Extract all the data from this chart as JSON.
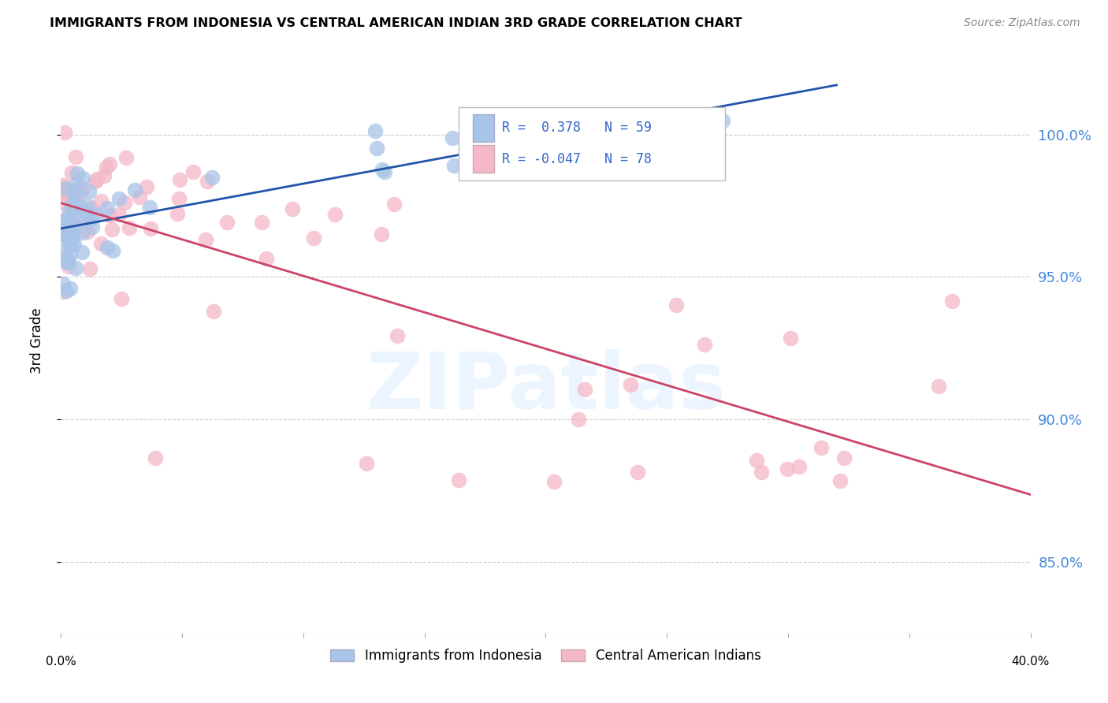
{
  "title": "IMMIGRANTS FROM INDONESIA VS CENTRAL AMERICAN INDIAN 3RD GRADE CORRELATION CHART",
  "source": "Source: ZipAtlas.com",
  "ylabel": "3rd Grade",
  "blue_color": "#a8c4e8",
  "pink_color": "#f4b8c8",
  "blue_line_color": "#2255aa",
  "pink_line_color": "#cc4466",
  "grid_color": "#cccccc",
  "ytick_values": [
    0.85,
    0.9,
    0.95,
    1.0
  ],
  "ytick_labels": [
    "85.0%",
    "90.0%",
    "95.0%",
    "100.0%"
  ],
  "xlim": [
    0.0,
    0.4
  ],
  "ylim": [
    0.825,
    1.03
  ],
  "watermark_text": "ZIPatlas",
  "watermark_color": "#ddeeff",
  "legend_text_color": "#3366cc",
  "legend_r1": "R =  0.378   N = 59",
  "legend_r2": "R = -0.047   N = 78",
  "blue_N": 59,
  "pink_N": 78,
  "blue_R": 0.378,
  "pink_R": -0.047
}
